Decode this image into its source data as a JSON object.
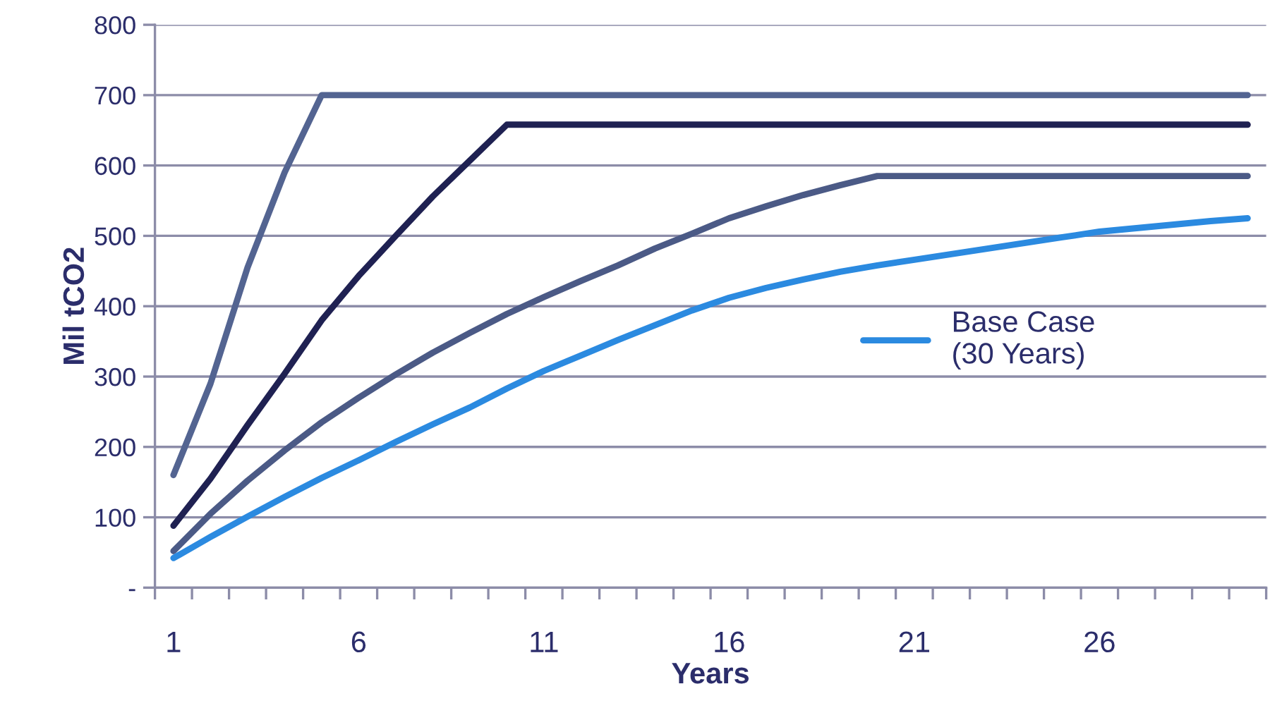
{
  "chart_data": {
    "type": "line",
    "xlabel": "Years",
    "ylabel": "Mil tCO2",
    "x": [
      1,
      2,
      3,
      4,
      5,
      6,
      7,
      8,
      9,
      10,
      11,
      12,
      13,
      14,
      15,
      16,
      17,
      18,
      19,
      20,
      21,
      22,
      23,
      24,
      25,
      26,
      27,
      28,
      29,
      30
    ],
    "series": [
      {
        "color": "#536491",
        "values": [
          160,
          290,
          455,
          590,
          700,
          700,
          700,
          700,
          700,
          700,
          700,
          700,
          700,
          700,
          700,
          700,
          700,
          700,
          700,
          700,
          700,
          700,
          700,
          700,
          700,
          700,
          700,
          700,
          700,
          700
        ]
      },
      {
        "color": "#1f2152",
        "values": [
          88,
          155,
          231,
          304,
          380,
          443,
          500,
          556,
          607,
          658,
          658,
          658,
          658,
          658,
          658,
          658,
          658,
          658,
          658,
          658,
          658,
          658,
          658,
          658,
          658,
          658,
          658,
          658,
          658,
          658
        ]
      },
      {
        "color": "#4b5a86",
        "values": [
          52,
          105,
          152,
          195,
          235,
          270,
          303,
          334,
          362,
          389,
          413,
          436,
          458,
          482,
          503,
          525,
          542,
          558,
          572,
          585,
          585,
          585,
          585,
          585,
          585,
          585,
          585,
          585,
          585,
          585
        ]
      },
      {
        "name": "Base Case\n(30 Years)",
        "color": "#2b8ae0",
        "values": [
          42,
          72,
          101,
          129,
          156,
          181,
          207,
          232,
          256,
          283,
          308,
          330,
          352,
          373,
          394,
          412,
          426,
          438,
          449,
          458,
          466,
          474,
          482,
          490,
          498,
          506,
          511,
          516,
          521,
          525
        ]
      }
    ],
    "xlim": [
      0.5,
      30.5
    ],
    "xticks": [
      1,
      6,
      11,
      16,
      21,
      26,
      {
        "value": 0.5,
        "label": null
      },
      {
        "value": 1.5,
        "label": null
      },
      {
        "value": 2.5,
        "label": null
      },
      {
        "value": 3.5,
        "label": null
      },
      {
        "value": 4.5,
        "label": null
      },
      {
        "value": 5.5,
        "label": null
      },
      {
        "value": 6.5,
        "label": null
      },
      {
        "value": 7.5,
        "label": null
      },
      {
        "value": 8.5,
        "label": null
      },
      {
        "value": 9.5,
        "label": null
      },
      {
        "value": 10.5,
        "label": null
      },
      {
        "value": 11.5,
        "label": null
      },
      {
        "value": 12.5,
        "label": null
      },
      {
        "value": 13.5,
        "label": null
      },
      {
        "value": 14.5,
        "label": null
      },
      {
        "value": 15.5,
        "label": null
      },
      {
        "value": 16.5,
        "label": null
      },
      {
        "value": 17.5,
        "label": null
      },
      {
        "value": 18.5,
        "label": null
      },
      {
        "value": 19.5,
        "label": null
      },
      {
        "value": 20.5,
        "label": null
      },
      {
        "value": 21.5,
        "label": null
      },
      {
        "value": 22.5,
        "label": null
      },
      {
        "value": 23.5,
        "label": null
      },
      {
        "value": 24.5,
        "label": null
      },
      {
        "value": 25.5,
        "label": null
      },
      {
        "value": 26.5,
        "label": null
      },
      {
        "value": 27.5,
        "label": null
      },
      {
        "value": 28.5,
        "label": null
      },
      {
        "value": 29.5,
        "label": null
      },
      {
        "value": 30.5,
        "label": null
      }
    ],
    "ylim": [
      0,
      800
    ],
    "yticks": [
      {
        "value": 0,
        "label": "-"
      },
      100,
      200,
      300,
      400,
      500,
      600,
      700,
      800
    ],
    "grid": "y",
    "legend": "center right",
    "marker": "none",
    "line_style": "solid"
  }
}
